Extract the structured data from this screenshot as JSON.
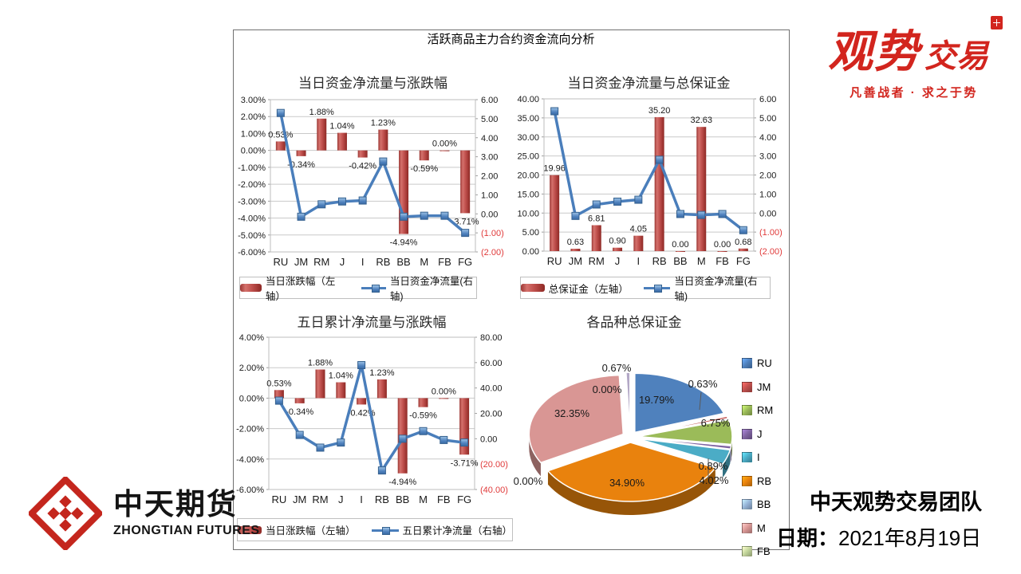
{
  "main_title": "活跃商品主力合约资金流向分析",
  "colors": {
    "bar": "#C0504D",
    "line": "#4A7EBB",
    "negative_tick": "#E03A3A"
  },
  "chart_data": [
    {
      "type": "combo",
      "title": "当日资金净流量与涨跌幅",
      "categories": [
        "RU",
        "JM",
        "RM",
        "J",
        "I",
        "RB",
        "BB",
        "M",
        "FB",
        "FG"
      ],
      "left_axis": {
        "max": 3,
        "min": -6,
        "ticks": [
          "3.00%",
          "2.00%",
          "1.00%",
          "0.00%",
          "-1.00%",
          "-2.00%",
          "-3.00%",
          "-4.00%",
          "-5.00%",
          "-6.00%"
        ]
      },
      "right_axis": {
        "max": 6,
        "min": -2,
        "ticks": [
          "6.00",
          "5.00",
          "4.00",
          "3.00",
          "2.00",
          "1.00",
          "0.00",
          "(1.00)",
          "(2.00)"
        ]
      },
      "series": [
        {
          "name": "当日涨跌幅（左轴）",
          "type": "bar",
          "axis": "left",
          "values": [
            0.53,
            -0.34,
            1.88,
            1.04,
            -0.42,
            1.23,
            -4.94,
            -0.59,
            0,
            -3.71
          ],
          "labels": [
            "0.53%",
            "-0.34%",
            "1.88%",
            "1.04%",
            "-0.42%",
            "1.23%",
            "-4.94%",
            "-0.59%",
            "0.00%",
            "-3.71%"
          ]
        },
        {
          "name": "当日资金净流量(右轴)",
          "type": "line",
          "axis": "right",
          "values": [
            5.3,
            -0.15,
            0.5,
            0.65,
            0.7,
            2.75,
            -0.15,
            -0.1,
            -0.1,
            -1.0
          ]
        }
      ]
    },
    {
      "type": "combo",
      "title": "当日资金净流量与总保证金",
      "categories": [
        "RU",
        "JM",
        "RM",
        "J",
        "I",
        "RB",
        "BB",
        "M",
        "FB",
        "FG"
      ],
      "left_axis": {
        "max": 40,
        "min": 0,
        "ticks": [
          "40.00",
          "35.00",
          "30.00",
          "25.00",
          "20.00",
          "15.00",
          "10.00",
          "5.00",
          "0.00"
        ]
      },
      "right_axis": {
        "max": 6,
        "min": -2,
        "ticks": [
          "6.00",
          "5.00",
          "4.00",
          "3.00",
          "2.00",
          "1.00",
          "0.00",
          "(1.00)",
          "(2.00)"
        ]
      },
      "series": [
        {
          "name": "总保证金（左轴）",
          "type": "bar",
          "axis": "left",
          "values": [
            19.96,
            0.63,
            6.81,
            0.9,
            4.05,
            35.2,
            0,
            32.63,
            0,
            0.68
          ],
          "labels": [
            "19.96",
            "0.63",
            "6.81",
            "0.90",
            "4.05",
            "35.20",
            "0.00",
            "32.63",
            "0.00",
            "0.68"
          ]
        },
        {
          "name": "当日资金净流量(右轴)",
          "type": "line",
          "axis": "right",
          "values": [
            5.35,
            -0.15,
            0.45,
            0.6,
            0.7,
            2.8,
            -0.05,
            -0.1,
            -0.05,
            -0.9
          ]
        }
      ]
    },
    {
      "type": "combo",
      "title": "五日累计净流量与涨跌幅",
      "categories": [
        "RU",
        "JM",
        "RM",
        "J",
        "I",
        "RB",
        "BB",
        "M",
        "FB",
        "FG"
      ],
      "left_axis": {
        "max": 4,
        "min": -6,
        "ticks": [
          "4.00%",
          "2.00%",
          "0.00%",
          "-2.00%",
          "-4.00%",
          "-6.00%"
        ]
      },
      "right_axis": {
        "max": 80,
        "min": -40,
        "ticks": [
          "80.00",
          "60.00",
          "40.00",
          "20.00",
          "0.00",
          "(20.00)",
          "(40.00)"
        ]
      },
      "series": [
        {
          "name": "当日涨跌幅（左轴）",
          "type": "bar",
          "axis": "left",
          "values": [
            0.53,
            -0.34,
            1.88,
            1.04,
            -0.42,
            1.23,
            -4.94,
            -0.59,
            0,
            -3.71
          ],
          "labels": [
            "0.53%",
            "-0.34%",
            "1.88%",
            "1.04%",
            "-0.42%",
            "1.23%",
            "-4.94%",
            "-0.59%",
            "0.00%",
            "-3.71%"
          ]
        },
        {
          "name": "五日累计净流量（右轴）",
          "type": "line",
          "axis": "right",
          "values": [
            30,
            3,
            -7,
            -3,
            58,
            -25,
            0,
            6,
            -1,
            -3
          ]
        }
      ]
    },
    {
      "type": "pie3d",
      "title": "各品种总保证金",
      "slices": [
        {
          "label": "RU",
          "value": 19.79,
          "text": "19.79%",
          "color": "#4F81BD"
        },
        {
          "label": "JM",
          "value": 0.63,
          "text": "0.63%",
          "color": "#C0504D"
        },
        {
          "label": "RM",
          "value": 6.75,
          "text": "6.75%",
          "color": "#9BBB59"
        },
        {
          "label": "J",
          "value": 0.89,
          "text": "0.89%",
          "color": "#8064A2"
        },
        {
          "label": "I",
          "value": 4.02,
          "text": "4.02%",
          "color": "#4BACC6"
        },
        {
          "label": "RB",
          "value": 34.9,
          "text": "34.90%",
          "color": "#E9820D"
        },
        {
          "label": "BB",
          "value": 0.0,
          "text": "0.00%",
          "color": "#95B3D7"
        },
        {
          "label": "M",
          "value": 32.35,
          "text": "32.35%",
          "color": "#D99694"
        },
        {
          "label": "FB",
          "value": 0.0,
          "text": "0.00%",
          "color": "#C3D69B"
        },
        {
          "label": "FG",
          "value": 0.67,
          "text": "0.67%",
          "color": "#B3A8C6"
        }
      ],
      "legend": [
        "RU",
        "JM",
        "RM",
        "J",
        "I",
        "RB",
        "BB",
        "M",
        "FB"
      ]
    }
  ],
  "logo_guanshi": {
    "main": "观势",
    "secondary": "交易",
    "tagline": "凡善战者 · 求之于势"
  },
  "logo_zhongtian": {
    "cn": "中天期货",
    "en": "ZHONGTIAN FUTURES"
  },
  "footer": {
    "team": "中天观势交易团队",
    "date_prefix": "日期：",
    "date_value": "2021年8月19日"
  }
}
